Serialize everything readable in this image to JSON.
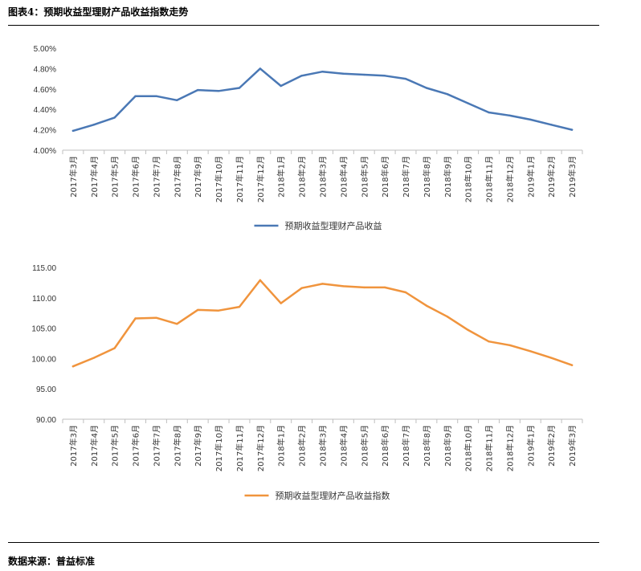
{
  "figure": {
    "title": "图表4：预期收益型理财产品收益指数走势",
    "source": "数据来源：普益标准"
  },
  "chart_data": [
    {
      "type": "line",
      "title": "",
      "legend": "预期收益型理财产品收益",
      "legend_position": "bottom-center",
      "color": "#4a78b5",
      "ylim": [
        4.0,
        5.0
      ],
      "yticks": [
        "4.00%",
        "4.20%",
        "4.40%",
        "4.60%",
        "4.80%",
        "5.00%"
      ],
      "categories": [
        "2017年3月",
        "2017年4月",
        "2017年5月",
        "2017年6月",
        "2017年7月",
        "2017年8月",
        "2017年9月",
        "2017年10月",
        "2017年11月",
        "2017年12月",
        "2018年1月",
        "2018年2月",
        "2018年3月",
        "2018年4月",
        "2018年5月",
        "2018年6月",
        "2018年7月",
        "2018年8月",
        "2018年9月",
        "2018年10月",
        "2018年11月",
        "2018年12月",
        "2019年1月",
        "2019年2月",
        "2019年3月"
      ],
      "values": [
        4.19,
        4.25,
        4.32,
        4.53,
        4.53,
        4.49,
        4.59,
        4.58,
        4.61,
        4.8,
        4.63,
        4.73,
        4.77,
        4.75,
        4.74,
        4.73,
        4.7,
        4.61,
        4.55,
        4.46,
        4.37,
        4.34,
        4.3,
        4.25,
        4.2
      ]
    },
    {
      "type": "line",
      "title": "",
      "legend": "预期收益型理财产品收益指数",
      "legend_position": "bottom-center",
      "color": "#f0943d",
      "ylim": [
        90,
        115
      ],
      "yticks": [
        "90.00",
        "95.00",
        "100.00",
        "105.00",
        "110.00",
        "115.00"
      ],
      "categories": [
        "2017年3月",
        "2017年4月",
        "2017年5月",
        "2017年6月",
        "2017年7月",
        "2017年8月",
        "2017年9月",
        "2017年10月",
        "2017年11月",
        "2017年12月",
        "2018年1月",
        "2018年2月",
        "2018年3月",
        "2018年4月",
        "2018年5月",
        "2018年6月",
        "2018年7月",
        "2018年8月",
        "2018年9月",
        "2018年10月",
        "2018年11月",
        "2018年12月",
        "2019年1月",
        "2019年2月",
        "2019年3月"
      ],
      "values": [
        98.7,
        100.1,
        101.7,
        106.6,
        106.7,
        105.7,
        108.0,
        107.9,
        108.5,
        112.9,
        109.1,
        111.6,
        112.3,
        111.9,
        111.7,
        111.7,
        110.9,
        108.7,
        106.9,
        104.7,
        102.8,
        102.2,
        101.2,
        100.1,
        98.9
      ]
    }
  ]
}
